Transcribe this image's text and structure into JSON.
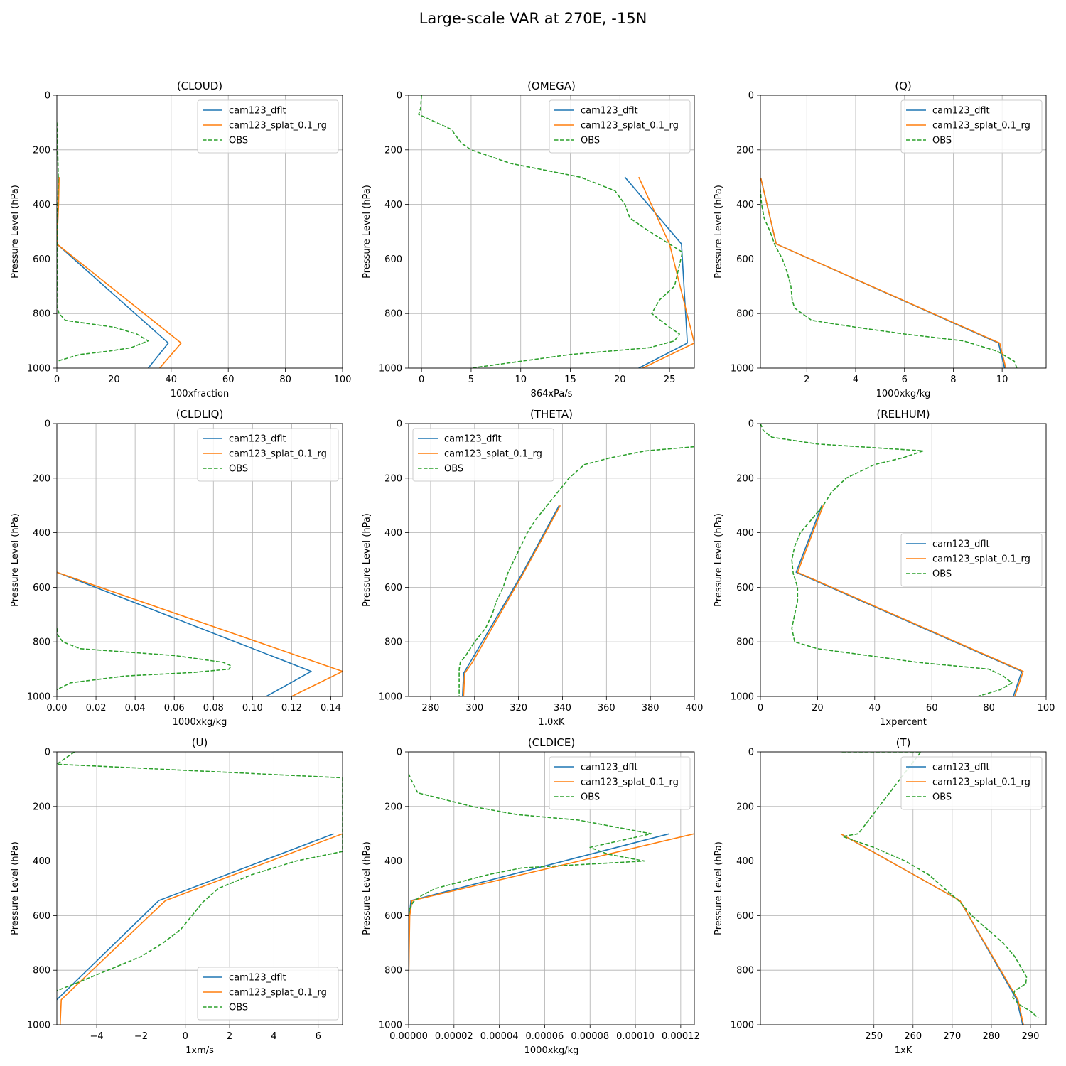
{
  "suptitle": "Large-scale VAR at 270E, -15N",
  "colors": {
    "dflt": "#1f77b4",
    "splat": "#ff7f0e",
    "obs": "#2ca02c",
    "grid": "#b0b0b0"
  },
  "chart_data": [
    {
      "type": "line",
      "title": "(CLOUD)",
      "xlabel": "100xfraction",
      "ylabel": "Pressure Level (hPa)",
      "xlim": [
        0,
        100
      ],
      "ylim": [
        1000,
        0
      ],
      "xticks": [
        0,
        20,
        40,
        60,
        80,
        100
      ],
      "xtick_labels": [
        "0",
        "20",
        "40",
        "60",
        "80",
        "100"
      ],
      "yticks": [
        0,
        200,
        400,
        600,
        800,
        1000
      ],
      "ytick_labels": [
        "0",
        "200",
        "400",
        "600",
        "800",
        "1000"
      ],
      "grid": true,
      "legend": "upper right",
      "series": [
        {
          "name": "cam123_dflt",
          "style": "solid",
          "x": [
            0.5,
            0.5,
            0,
            39,
            32
          ],
          "y": [
            300,
            400,
            545,
            908,
            1000
          ]
        },
        {
          "name": "cam123_splat_0.1_rg",
          "style": "solid",
          "x": [
            0.8,
            0.6,
            0,
            43.5,
            36
          ],
          "y": [
            300,
            400,
            545,
            908,
            1000
          ]
        },
        {
          "name": "OBS",
          "style": "dashed",
          "x": [
            0,
            0.3,
            0.5,
            0.2,
            0,
            0.8,
            3,
            20,
            28,
            30,
            32,
            26,
            18,
            8,
            0
          ],
          "y": [
            100,
            200,
            300,
            500,
            775,
            800,
            825,
            850,
            875,
            888,
            900,
            925,
            938,
            950,
            975
          ]
        }
      ]
    },
    {
      "type": "line",
      "title": "(OMEGA)",
      "xlabel": "864xPa/s",
      "ylabel": "Pressure Level (hPa)",
      "xlim": [
        -1.3,
        27.5
      ],
      "ylim": [
        1000,
        0
      ],
      "xticks": [
        0,
        5,
        10,
        15,
        20,
        25
      ],
      "xtick_labels": [
        "0",
        "5",
        "10",
        "15",
        "20",
        "25"
      ],
      "yticks": [
        0,
        200,
        400,
        600,
        800,
        1000
      ],
      "ytick_labels": [
        "0",
        "200",
        "400",
        "600",
        "800",
        "1000"
      ],
      "grid": true,
      "legend": "upper right",
      "series": [
        {
          "name": "cam123_dflt",
          "style": "solid",
          "x": [
            20.5,
            26.2,
            26.8,
            21.9
          ],
          "y": [
            300,
            545,
            908,
            1000
          ]
        },
        {
          "name": "cam123_splat_0.1_rg",
          "style": "solid",
          "x": [
            21.9,
            25,
            27.5,
            22.3
          ],
          "y": [
            300,
            545,
            908,
            1000
          ]
        },
        {
          "name": "OBS",
          "style": "dashed",
          "x": [
            0,
            -0.1,
            -0.3,
            3,
            4,
            5,
            9,
            16,
            19.5,
            20.5,
            21,
            23,
            26.3,
            25.5,
            24,
            23.2,
            25,
            26,
            25.5,
            23,
            15,
            10,
            5
          ],
          "y": [
            0,
            50,
            70,
            125,
            175,
            200,
            250,
            300,
            350,
            400,
            450,
            500,
            575,
            700,
            750,
            800,
            850,
            875,
            900,
            925,
            950,
            975,
            1000
          ]
        }
      ]
    },
    {
      "type": "line",
      "title": "(Q)",
      "xlabel": "1000xkg/kg",
      "ylabel": "Pressure Level (hPa)",
      "xlim": [
        0.1,
        11.8
      ],
      "ylim": [
        1000,
        0
      ],
      "xticks": [
        2,
        4,
        6,
        8,
        10
      ],
      "xtick_labels": [
        "2",
        "4",
        "6",
        "8",
        "10"
      ],
      "yticks": [
        0,
        200,
        400,
        600,
        800,
        1000
      ],
      "ytick_labels": [
        "0",
        "200",
        "400",
        "600",
        "800",
        "1000"
      ],
      "grid": true,
      "legend": "upper right",
      "series": [
        {
          "name": "cam123_dflt",
          "style": "solid",
          "x": [
            0.12,
            0.75,
            9.85,
            10.1
          ],
          "y": [
            305,
            545,
            908,
            1000
          ]
        },
        {
          "name": "cam123_splat_0.1_rg",
          "style": "solid",
          "x": [
            0.12,
            0.75,
            9.9,
            10.15
          ],
          "y": [
            305,
            545,
            908,
            1000
          ]
        },
        {
          "name": "OBS",
          "style": "dashed",
          "x": [
            0.05,
            0.1,
            0.15,
            0.25,
            0.5,
            0.7,
            1,
            1.2,
            1.35,
            1.4,
            1.5,
            2.2,
            4,
            6,
            8.4,
            9.8,
            10.5,
            10.6
          ],
          "y": [
            300,
            350,
            400,
            450,
            500,
            550,
            600,
            650,
            700,
            750,
            780,
            825,
            850,
            875,
            900,
            938,
            975,
            1000
          ]
        }
      ]
    },
    {
      "type": "line",
      "title": "(CLDLIQ)",
      "xlabel": "1000xkg/kg",
      "ylabel": "Pressure Level (hPa)",
      "xlim": [
        0,
        0.146
      ],
      "ylim": [
        1000,
        0
      ],
      "xticks": [
        0,
        0.02,
        0.04,
        0.06,
        0.08,
        0.1,
        0.12,
        0.14
      ],
      "xtick_labels": [
        "0.00",
        "0.02",
        "0.04",
        "0.06",
        "0.08",
        "0.10",
        "0.12",
        "0.14"
      ],
      "yticks": [
        0,
        200,
        400,
        600,
        800,
        1000
      ],
      "ytick_labels": [
        "0",
        "200",
        "400",
        "600",
        "800",
        "1000"
      ],
      "grid": true,
      "legend": "upper right",
      "series": [
        {
          "name": "cam123_dflt",
          "style": "solid",
          "x": [
            0,
            0.13,
            0.107
          ],
          "y": [
            545,
            908,
            1000
          ]
        },
        {
          "name": "cam123_splat_0.1_rg",
          "style": "solid",
          "x": [
            0,
            0.146,
            0.12
          ],
          "y": [
            545,
            908,
            1000
          ]
        },
        {
          "name": "OBS",
          "style": "dashed",
          "x": [
            0,
            0.0005,
            0.003,
            0.012,
            0.06,
            0.085,
            0.089,
            0.088,
            0.07,
            0.035,
            0.007,
            0
          ],
          "y": [
            750,
            775,
            800,
            825,
            850,
            875,
            888,
            900,
            912,
            925,
            950,
            975
          ]
        }
      ]
    },
    {
      "type": "line",
      "title": "(THETA)",
      "xlabel": "1.0xK",
      "ylabel": "Pressure Level (hPa)",
      "xlim": [
        270,
        400
      ],
      "ylim": [
        1000,
        0
      ],
      "xticks": [
        280,
        300,
        320,
        340,
        360,
        380,
        400
      ],
      "xtick_labels": [
        "280",
        "300",
        "320",
        "340",
        "360",
        "380",
        "400"
      ],
      "yticks": [
        0,
        200,
        400,
        600,
        800,
        1000
      ],
      "ytick_labels": [
        "0",
        "200",
        "400",
        "600",
        "800",
        "1000"
      ],
      "grid": true,
      "legend": "upper left",
      "series": [
        {
          "name": "cam123_dflt",
          "style": "solid",
          "x": [
            338.5,
            322,
            298,
            295,
            294.5
          ],
          "y": [
            300,
            545,
            875,
            915,
            1000
          ]
        },
        {
          "name": "cam123_splat_0.1_rg",
          "style": "solid",
          "x": [
            339,
            322.5,
            299,
            295.5,
            295
          ],
          "y": [
            300,
            545,
            875,
            915,
            1000
          ]
        },
        {
          "name": "OBS",
          "style": "dashed",
          "x": [
            400,
            378,
            362,
            350,
            343,
            338,
            333,
            328,
            324,
            321,
            318,
            315,
            313,
            310,
            308,
            305,
            300,
            296,
            293.5,
            293,
            293,
            293
          ],
          "y": [
            85,
            100,
            125,
            150,
            200,
            250,
            300,
            350,
            400,
            450,
            500,
            550,
            600,
            650,
            700,
            750,
            800,
            850,
            875,
            900,
            925,
            1000
          ]
        }
      ]
    },
    {
      "type": "line",
      "title": "(RELHUM)",
      "xlabel": "1xpercent",
      "ylabel": "Pressure Level (hPa)",
      "xlim": [
        0,
        100
      ],
      "ylim": [
        1000,
        0
      ],
      "xticks": [
        0,
        20,
        40,
        60,
        80,
        100
      ],
      "xtick_labels": [
        "0",
        "20",
        "40",
        "60",
        "80",
        "100"
      ],
      "yticks": [
        0,
        200,
        400,
        600,
        800,
        1000
      ],
      "ytick_labels": [
        "0",
        "200",
        "400",
        "600",
        "800",
        "1000"
      ],
      "grid": true,
      "legend": "center right",
      "series": [
        {
          "name": "cam123_dflt",
          "style": "solid",
          "x": [
            21.5,
            12.5,
            91.5,
            88.5
          ],
          "y": [
            300,
            545,
            908,
            1000
          ]
        },
        {
          "name": "cam123_splat_0.1_rg",
          "style": "solid",
          "x": [
            22,
            13,
            92,
            89
          ],
          "y": [
            300,
            545,
            908,
            1000
          ]
        },
        {
          "name": "OBS",
          "style": "dashed",
          "x": [
            0,
            1,
            4,
            20,
            57,
            50,
            40,
            30,
            25,
            22,
            18,
            14,
            12,
            11,
            11.5,
            13,
            13,
            12,
            11,
            12,
            20,
            55,
            80,
            85,
            88,
            84,
            76
          ],
          "y": [
            0,
            25,
            50,
            75,
            100,
            125,
            150,
            200,
            250,
            300,
            350,
            400,
            450,
            500,
            550,
            600,
            650,
            700,
            750,
            800,
            825,
            875,
            900,
            925,
            950,
            975,
            1000
          ]
        }
      ]
    },
    {
      "type": "line",
      "title": "(U)",
      "xlabel": "1xm/s",
      "ylabel": "Pressure Level (hPa)",
      "xlim": [
        -5.8,
        7.1
      ],
      "ylim": [
        1000,
        0
      ],
      "xticks": [
        -4,
        -2,
        0,
        2,
        4,
        6
      ],
      "xtick_labels": [
        "−4",
        "−2",
        "0",
        "2",
        "4",
        "6"
      ],
      "yticks": [
        0,
        200,
        400,
        600,
        800,
        1000
      ],
      "ytick_labels": [
        "0",
        "200",
        "400",
        "600",
        "800",
        "1000"
      ],
      "grid": true,
      "legend": "lower right",
      "series": [
        {
          "name": "cam123_dflt",
          "style": "solid",
          "x": [
            6.7,
            -1.2,
            -5.8
          ],
          "y": [
            300,
            545,
            908
          ]
        },
        {
          "name": "cam123_splat_0.1_rg",
          "style": "solid",
          "x": [
            7.1,
            -0.9,
            -5.6,
            -5.65
          ],
          "y": [
            300,
            545,
            908,
            1000
          ]
        },
        {
          "name": "OBS",
          "style": "dashed",
          "x": [
            -5,
            -5.8,
            7.1,
            7.1,
            5,
            3,
            1.5,
            0.8,
            0.3,
            -0.2,
            -1,
            -2,
            -3.5,
            -5,
            -5.8
          ],
          "y": [
            0,
            45,
            95,
            365,
            400,
            450,
            500,
            550,
            600,
            650,
            700,
            750,
            800,
            850,
            875
          ]
        }
      ]
    },
    {
      "type": "line",
      "title": "(CLDICE)",
      "xlabel": "1000xkg/kg",
      "ylabel": "Pressure Level (hPa)",
      "xlim": [
        0,
        0.000126
      ],
      "ylim": [
        1000,
        0
      ],
      "xticks": [
        0,
        2e-05,
        4e-05,
        6e-05,
        8e-05,
        0.0001,
        0.00012
      ],
      "xtick_labels": [
        "0.00000",
        "0.00002",
        "0.00004",
        "0.00006",
        "0.00008",
        "0.00010",
        "0.00012"
      ],
      "yticks": [
        0,
        200,
        400,
        600,
        800,
        1000
      ],
      "ytick_labels": [
        "0",
        "200",
        "400",
        "600",
        "800",
        "1000"
      ],
      "grid": true,
      "legend": "upper right",
      "series": [
        {
          "name": "cam123_dflt",
          "style": "solid",
          "x": [
            0.000115,
            1e-06,
            3e-07,
            0
          ],
          "y": [
            300,
            545,
            600,
            850
          ]
        },
        {
          "name": "cam123_splat_0.1_rg",
          "style": "solid",
          "x": [
            0.000126,
            1.5e-06,
            5e-07,
            0
          ],
          "y": [
            300,
            545,
            600,
            850
          ]
        },
        {
          "name": "OBS",
          "style": "dashed",
          "x": [
            0,
            1e-06,
            4e-06,
            1.6e-05,
            2.8e-05,
            4.8e-05,
            7.5e-05,
            0.000107,
            8e-05,
            8.8e-05,
            0.000104,
            5e-05,
            3.5e-05,
            1.2e-05,
            6e-06,
            2e-06,
            5e-07,
            0
          ],
          "y": [
            80,
            100,
            150,
            175,
            200,
            230,
            250,
            300,
            350,
            375,
            400,
            425,
            450,
            500,
            525,
            550,
            575,
            600
          ]
        }
      ]
    },
    {
      "type": "line",
      "title": "(T)",
      "xlabel": "1xK",
      "ylabel": "Pressure Level (hPa)",
      "xlim": [
        221,
        294
      ],
      "ylim": [
        1000,
        0
      ],
      "xticks": [
        250,
        260,
        270,
        280,
        290
      ],
      "xtick_labels": [
        "250",
        "260",
        "270",
        "280",
        "290"
      ],
      "yticks": [
        0,
        200,
        400,
        600,
        800,
        1000
      ],
      "ytick_labels": [
        "0",
        "200",
        "400",
        "600",
        "800",
        "1000"
      ],
      "grid": true,
      "legend": "upper right",
      "series": [
        {
          "name": "cam123_dflt",
          "style": "solid",
          "x": [
            241.5,
            272,
            286.5,
            288
          ],
          "y": [
            300,
            545,
            908,
            1000
          ]
        },
        {
          "name": "cam123_splat_0.1_rg",
          "style": "solid",
          "x": [
            241.5,
            272,
            286.8,
            288.2
          ],
          "y": [
            300,
            545,
            908,
            1000
          ]
        },
        {
          "name": "OBS",
          "style": "dashed",
          "x": [
            241.8,
            262,
            246,
            242,
            250,
            258,
            264,
            268,
            272,
            275,
            279,
            283,
            286,
            288,
            289,
            288.8,
            286,
            285.5,
            287,
            290,
            292
          ],
          "y": [
            0,
            0,
            300,
            310,
            350,
            400,
            450,
            500,
            550,
            600,
            650,
            700,
            750,
            800,
            825,
            850,
            875,
            900,
            925,
            950,
            975
          ]
        }
      ]
    }
  ]
}
